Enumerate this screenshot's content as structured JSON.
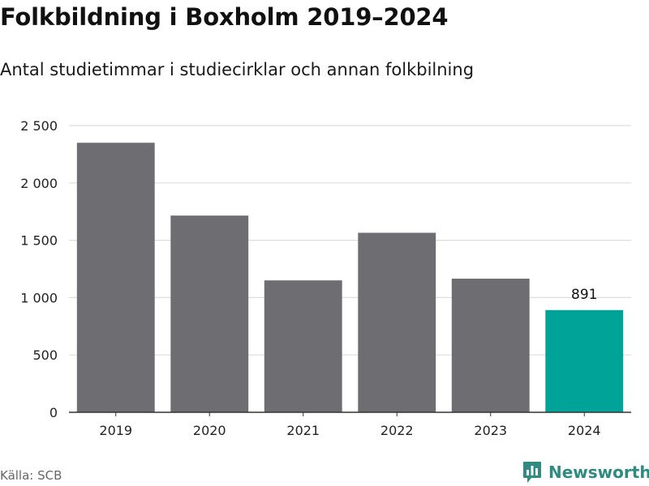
{
  "title": "Folkbildning i Boxholm 2019–2024",
  "subtitle": "Antal studietimmar i studiecirklar och annan folkbilning",
  "source": "Källa: SCB",
  "brand": {
    "name": "Newsworthy",
    "icon": "newsworthy-logo-icon",
    "color": "#2f8a80"
  },
  "colors": {
    "bar": "#6e6d72",
    "highlight": "#00a398",
    "grid": "#dddddd",
    "axis": "#333333"
  },
  "chart_data": {
    "type": "bar",
    "categories": [
      "2019",
      "2020",
      "2021",
      "2022",
      "2023",
      "2024"
    ],
    "values": [
      2350,
      1715,
      1150,
      1565,
      1165,
      891
    ],
    "highlight_index": 5,
    "data_labels": [
      {
        "index": 5,
        "text": "891"
      }
    ],
    "yticks": [
      {
        "value": 0,
        "label": "0"
      },
      {
        "value": 500,
        "label": "500"
      },
      {
        "value": 1000,
        "label": "1 000"
      },
      {
        "value": 1500,
        "label": "1 500"
      },
      {
        "value": 2000,
        "label": "2 000"
      },
      {
        "value": 2500,
        "label": "2 500"
      }
    ],
    "ylim": [
      0,
      2500
    ],
    "grid": true,
    "legend": "none",
    "xlabel": "",
    "ylabel": ""
  }
}
